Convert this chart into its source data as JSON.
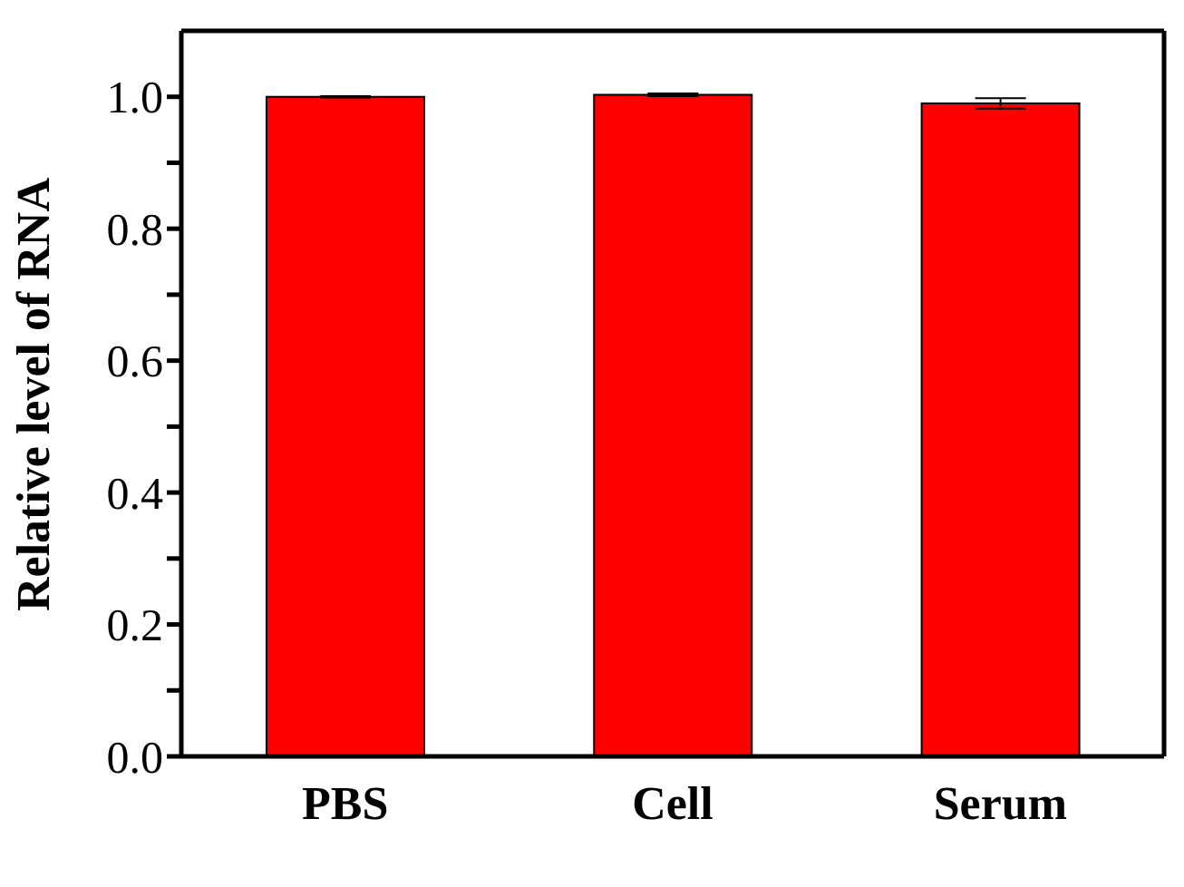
{
  "chart_data": {
    "type": "bar",
    "ylabel": "Relative level of RNA",
    "categories": [
      "PBS",
      "Cell",
      "Serum"
    ],
    "values": [
      1.0,
      1.003,
      0.99
    ],
    "errors": [
      0.001,
      0.002,
      0.008
    ],
    "color": "#ff0000",
    "ylim": [
      0,
      1.1
    ],
    "yticks": [
      {
        "value": 0,
        "label": "0.0"
      },
      {
        "value": 0.1,
        "label": null
      },
      {
        "value": 0.2,
        "label": "0.2"
      },
      {
        "value": 0.3,
        "label": null
      },
      {
        "value": 0.4,
        "label": "0.4"
      },
      {
        "value": 0.5,
        "label": null
      },
      {
        "value": 0.6,
        "label": "0.6"
      },
      {
        "value": 0.7,
        "label": null
      },
      {
        "value": 0.8,
        "label": "0.8"
      },
      {
        "value": 0.9,
        "label": null
      },
      {
        "value": 1.0,
        "label": "1.0"
      }
    ],
    "grid": false,
    "legend": false
  }
}
